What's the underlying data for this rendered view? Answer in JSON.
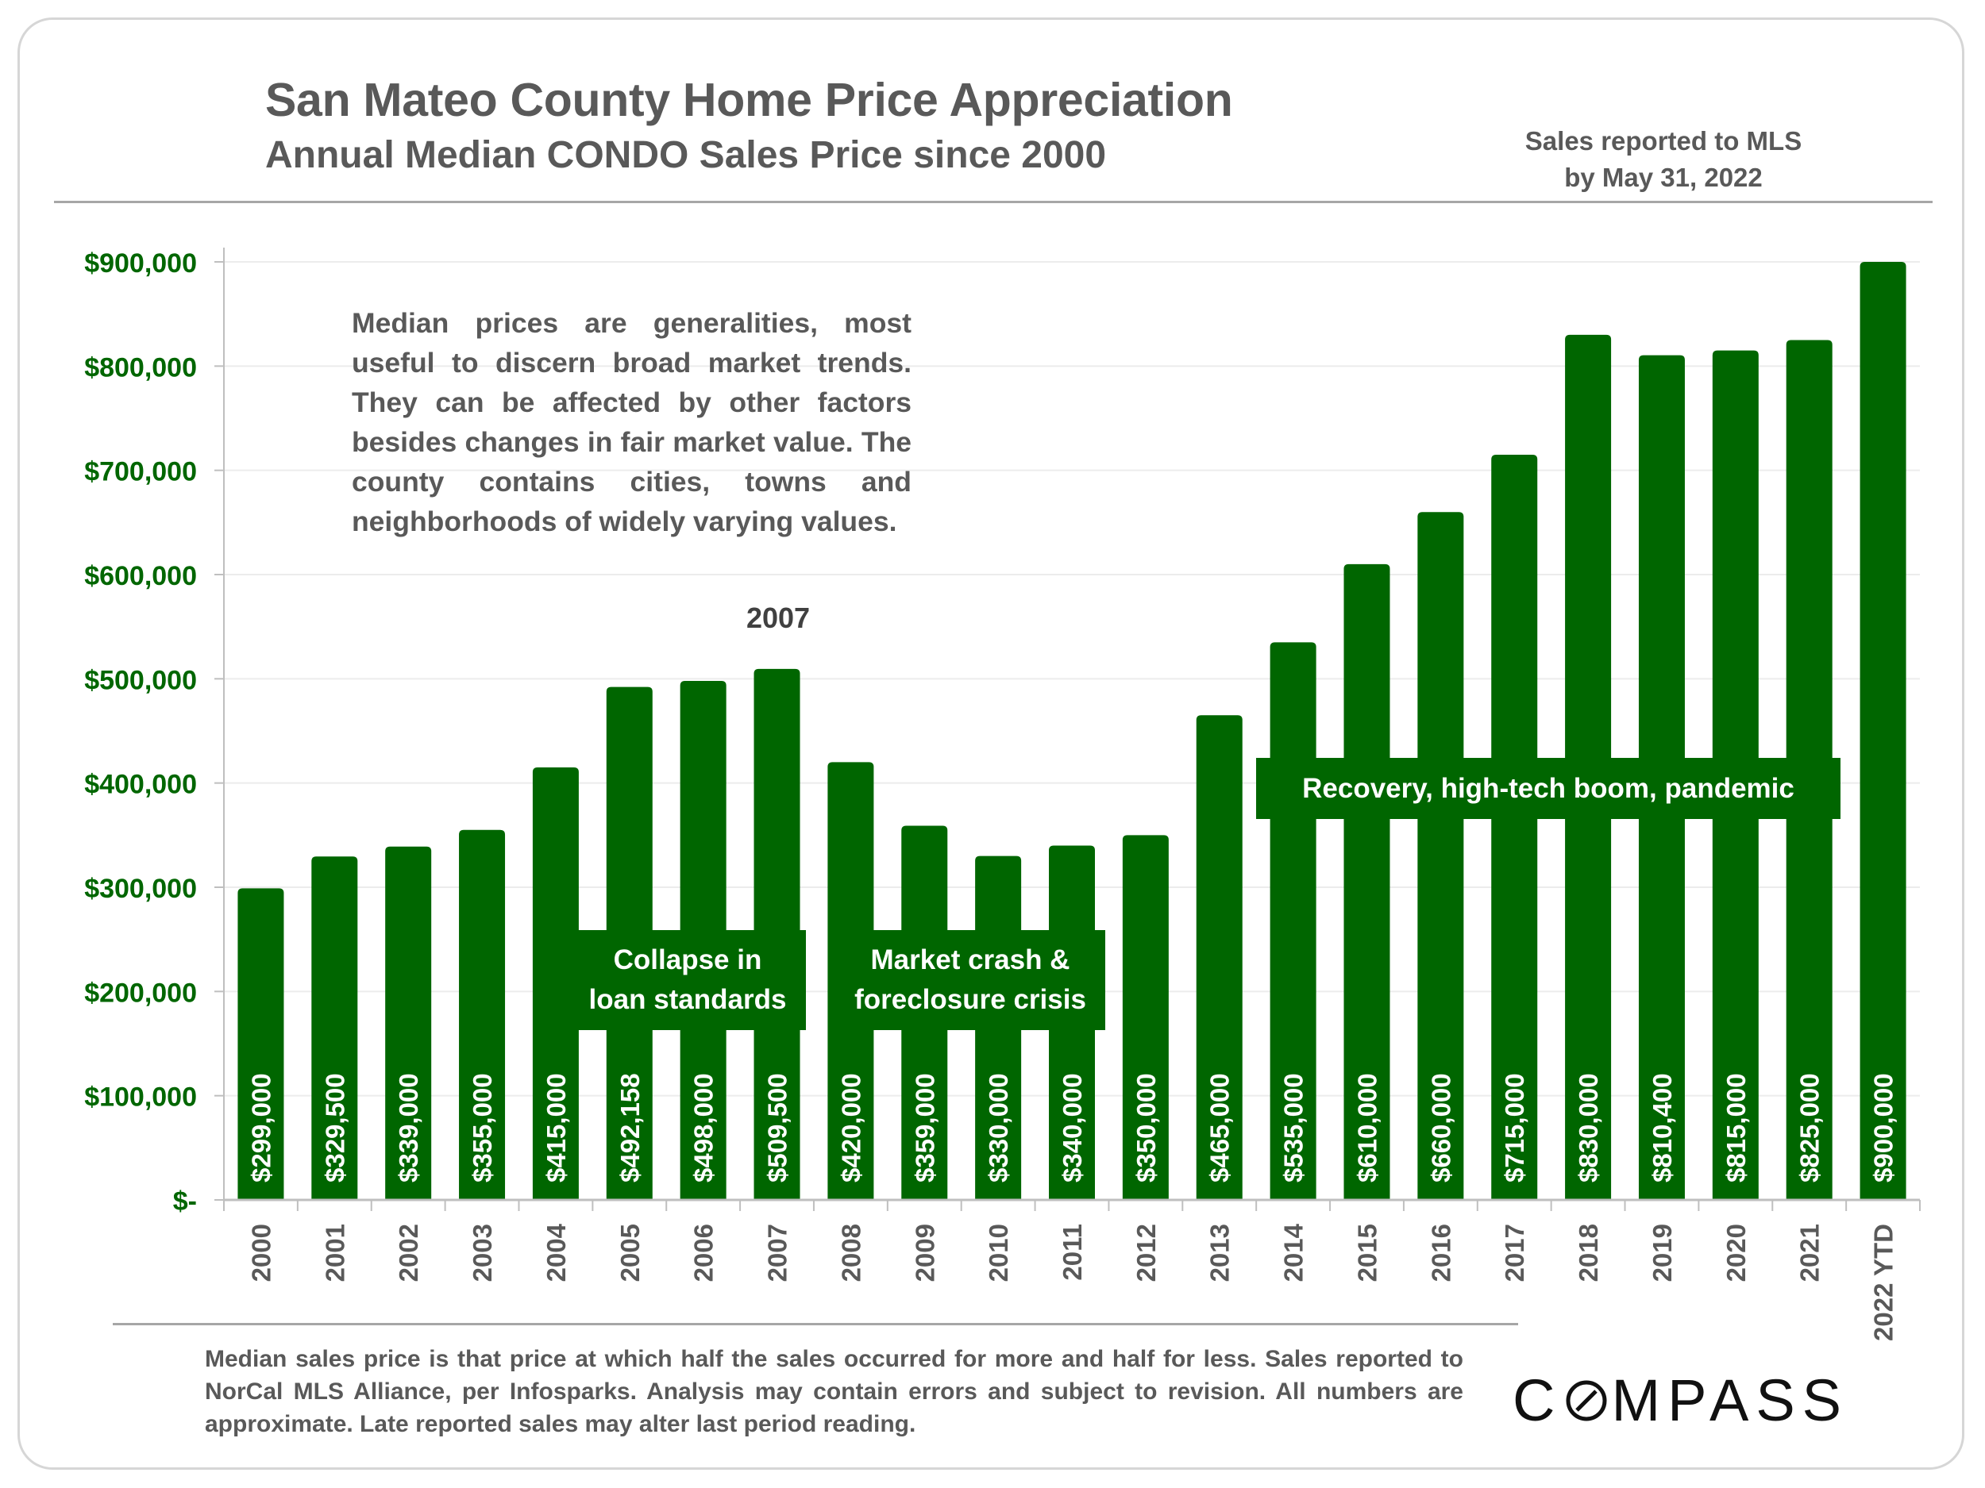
{
  "header": {
    "title": "San Mateo County Home Price Appreciation",
    "subtitle": "Annual Median CONDO Sales Price since 2000",
    "sales_note_line1": "Sales reported to MLS",
    "sales_note_line2": "by May 31, 2022"
  },
  "explainer": "Median prices are generalities, most useful to discern broad market trends. They can be affected by other factors besides changes in fair market value. The county contains cities, towns and neighborhoods of widely varying values.",
  "annotations": {
    "peak_year": "2007",
    "collapse_line1": "Collapse in",
    "collapse_line2": "loan standards",
    "crash_line1": "Market crash &",
    "crash_line2": "foreclosure crisis",
    "recovery": "Recovery, high-tech boom, pandemic"
  },
  "footnote": "Median sales price is that price at which half the sales occurred for more and half for less. Sales reported to NorCal MLS Alliance, per Infosparks. Analysis may contain errors and subject to revision. All numbers are approximate. Late reported sales may alter last period reading.",
  "logo": {
    "before": "C",
    "after": "MPASS"
  },
  "colors": {
    "bar": "#006600",
    "axis_label": "#006600",
    "text": "#595959"
  },
  "chart_data": {
    "type": "bar",
    "categories": [
      "2000",
      "2001",
      "2002",
      "2003",
      "2004",
      "2005",
      "2006",
      "2007",
      "2008",
      "2009",
      "2010",
      "2011",
      "2012",
      "2013",
      "2014",
      "2015",
      "2016",
      "2017",
      "2018",
      "2019",
      "2020",
      "2021",
      "2022 YTD"
    ],
    "values": [
      299000,
      329500,
      339000,
      355000,
      415000,
      492158,
      498000,
      509500,
      420000,
      359000,
      330000,
      340000,
      350000,
      465000,
      535000,
      610000,
      660000,
      715000,
      830000,
      810400,
      815000,
      825000,
      900000
    ],
    "data_labels": [
      "$299,000",
      "$329,500",
      "$339,000",
      "$355,000",
      "$415,000",
      "$492,158",
      "$498,000",
      "$509,500",
      "$420,000",
      "$359,000",
      "$330,000",
      "$340,000",
      "$350,000",
      "$465,000",
      "$535,000",
      "$610,000",
      "$660,000",
      "$715,000",
      "$830,000",
      "$810,400",
      "$815,000",
      "$825,000",
      "$900,000"
    ],
    "ylim": [
      0,
      900000
    ],
    "yticks": [
      0,
      100000,
      200000,
      300000,
      400000,
      500000,
      600000,
      700000,
      800000,
      900000
    ],
    "ytick_labels": [
      "$-",
      "$100,000",
      "$200,000",
      "$300,000",
      "$400,000",
      "$500,000",
      "$600,000",
      "$700,000",
      "$800,000",
      "$900,000"
    ],
    "grid": true,
    "legend": "none"
  }
}
